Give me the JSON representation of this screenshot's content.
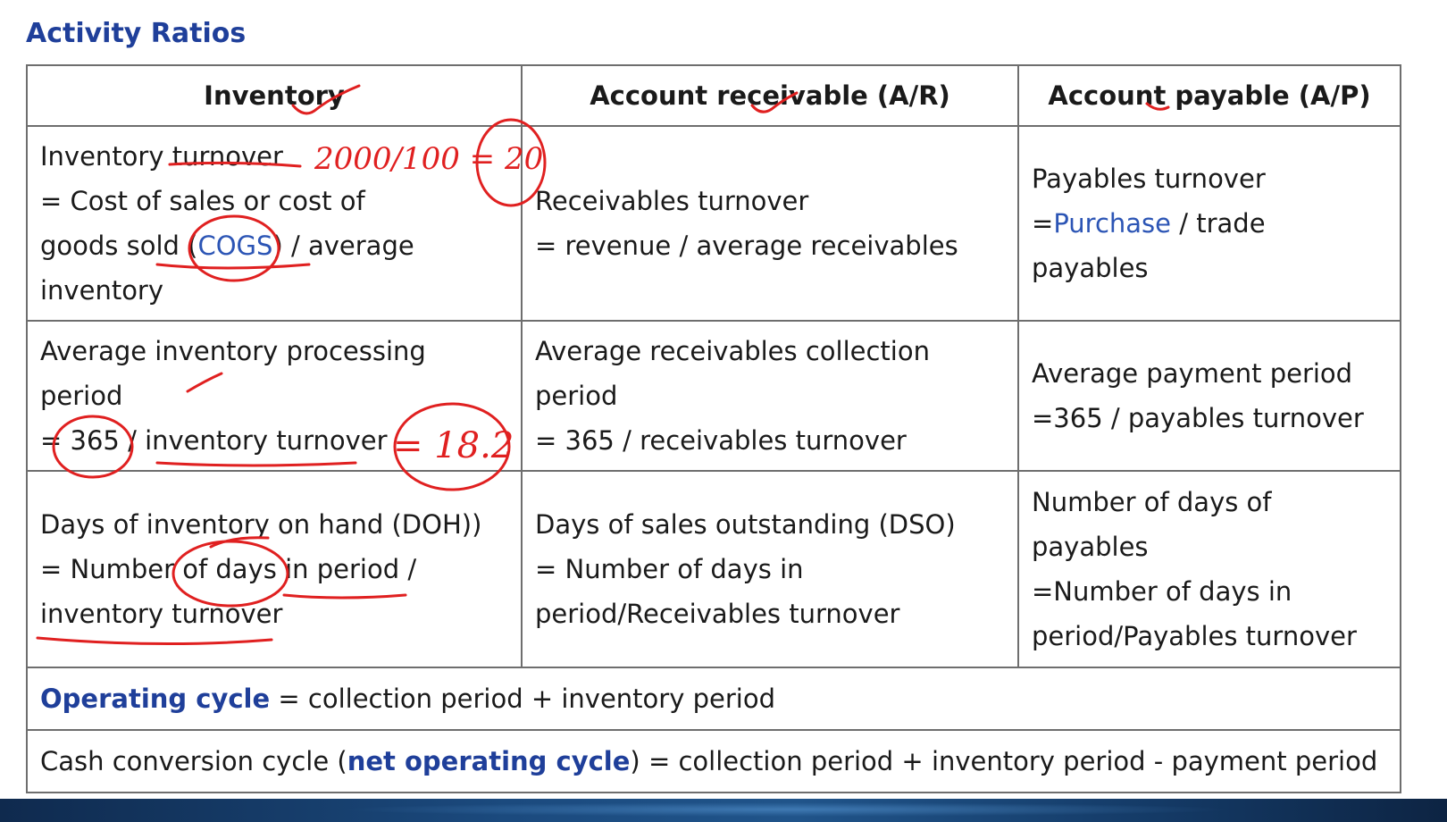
{
  "title": "Activity Ratios",
  "table": {
    "headers": {
      "inventory": "Inventory",
      "receivable": "Account receivable (A/R)",
      "payable": "Account payable (A/P)"
    },
    "turnover": {
      "inventory": {
        "line1": "Inventory turnover",
        "line2": "= Cost of sales or cost of",
        "line3_pre": "goods sold (",
        "line3_term": "COGS",
        "line3_post": ") / average",
        "line4": "inventory"
      },
      "receivable": {
        "line1": "Receivables turnover",
        "line2": "= revenue / average receivables"
      },
      "payable": {
        "line1": "Payables turnover",
        "line2_pre": "=",
        "line2_term": "Purchase",
        "line2_post": " / trade payables"
      }
    },
    "period": {
      "inventory": {
        "line1": "Average inventory processing",
        "line2": "period",
        "line3": "= 365 / inventory turnover"
      },
      "receivable": {
        "line1": "Average receivables collection",
        "line2": "period",
        "line3": "= 365 / receivables turnover"
      },
      "payable": {
        "line1": "Average payment period",
        "line2": "=365 / payables turnover"
      }
    },
    "days": {
      "inventory": {
        "line1": "Days of inventory on hand (DOH))",
        "line2": "= Number of days in period /",
        "line3": "inventory turnover"
      },
      "receivable": {
        "line1": "Days of sales outstanding (DSO)",
        "line2": "= Number of days in",
        "line3": "period/Receivables turnover"
      },
      "payable": {
        "line1": "Number of days of",
        "line2": "payables",
        "line3": "=Number of days in",
        "line4": "period/Payables turnover"
      }
    },
    "operating_cycle": {
      "term": "Operating cycle",
      "formula": " = collection period + inventory period"
    },
    "cash_cycle": {
      "pre": "Cash conversion cycle (",
      "term": "net operating cycle",
      "post": ") = collection period + inventory period - payment period"
    }
  },
  "annotations": {
    "calc_turnover": "2000/100 = 20",
    "calc_period": "= 18.2",
    "color": "#e02020"
  },
  "colors": {
    "title": "#1f3f9a",
    "term": "#2c55b5",
    "border": "#6e6e6e"
  }
}
